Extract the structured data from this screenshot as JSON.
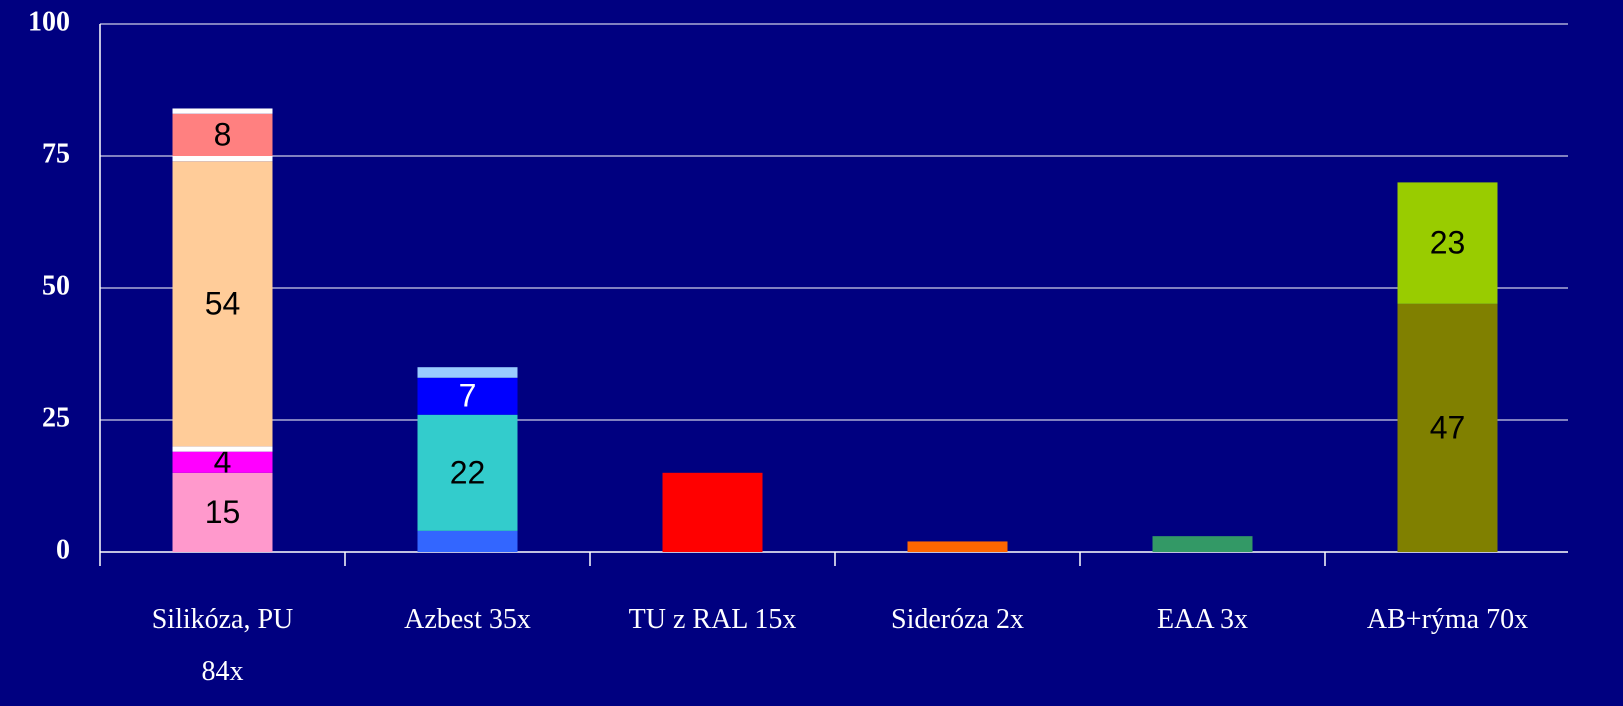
{
  "chart_data": {
    "type": "stacked_bar",
    "categories": [
      "Silikóza, PU\n84x",
      "Azbest 35x",
      "TU z RAL 15x",
      "Sideróza 2x",
      "EAA 3x",
      "AB+rýma 70x"
    ],
    "stacks": [
      {
        "values": [
          15,
          4,
          1,
          54,
          1,
          8,
          1
        ],
        "colors": [
          "#ff99cc",
          "#ff00ff",
          "#ffffff",
          "#ffcc99",
          "#ffffff",
          "#ff8080",
          "#ffffff"
        ],
        "value_labels": [
          15,
          4,
          null,
          54,
          null,
          8,
          null
        ],
        "label_colors": [
          "#000000",
          "#000000",
          null,
          "#000000",
          null,
          "#000000",
          null
        ]
      },
      {
        "values": [
          4,
          22,
          7,
          2
        ],
        "colors": [
          "#3366ff",
          "#33cccc",
          "#0000ff",
          "#99ccff"
        ],
        "value_labels": [
          null,
          22,
          7,
          null
        ],
        "label_colors": [
          null,
          "#000000",
          "#ffffff",
          null
        ]
      },
      {
        "values": [
          15
        ],
        "colors": [
          "#ff0000"
        ]
      },
      {
        "values": [
          2
        ],
        "colors": [
          "#ff6600"
        ]
      },
      {
        "values": [
          3
        ],
        "colors": [
          "#339966"
        ]
      },
      {
        "values": [
          47,
          23
        ],
        "colors": [
          "#808000",
          "#99cc00"
        ],
        "value_labels": [
          47,
          23
        ],
        "label_colors": [
          "#000000",
          "#000000"
        ]
      }
    ],
    "ylim": [
      0,
      100
    ],
    "yticks": [
      0,
      25,
      50,
      75,
      100
    ],
    "grid": true
  }
}
